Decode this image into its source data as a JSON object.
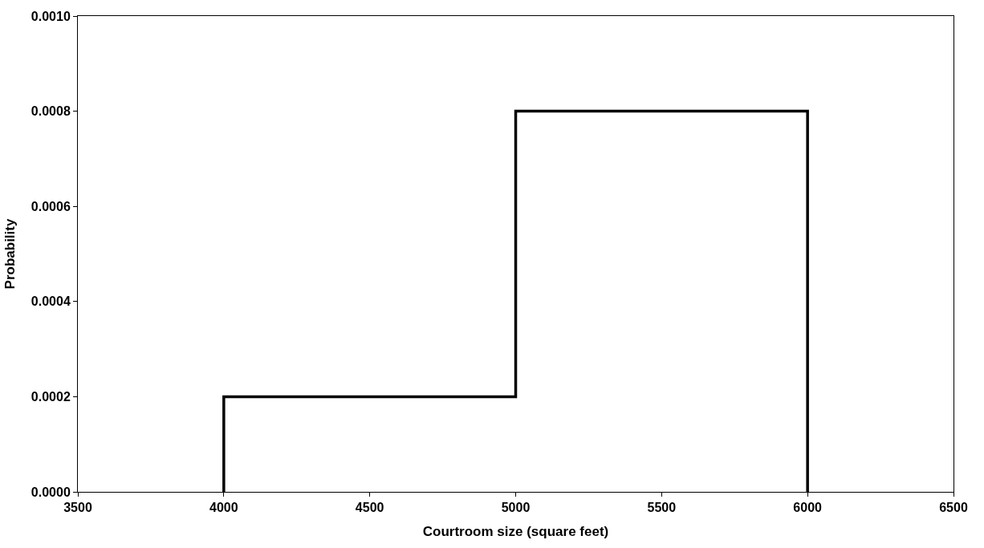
{
  "chart_data": {
    "type": "line",
    "xlabel": "Courtroom size (square feet)",
    "ylabel": "Probability",
    "x": [
      4000,
      4000,
      5000,
      5000,
      6000,
      6000
    ],
    "series": [
      {
        "color": "#000000",
        "values": [
          0,
          0.0002,
          0.0002,
          0.0008,
          0.0008,
          0
        ]
      }
    ],
    "xlim": [
      3500,
      6500
    ],
    "xticks": [
      3500,
      4000,
      4500,
      5000,
      5500,
      6000,
      6500
    ],
    "ylim": [
      0,
      0.001
    ],
    "yticks": [
      {
        "value": 0,
        "label": "0.0000"
      },
      {
        "value": 0.0002,
        "label": "0.0002"
      },
      {
        "value": 0.0004,
        "label": "0.0004"
      },
      {
        "value": 0.0006,
        "label": "0.0006"
      },
      {
        "value": 0.0008,
        "label": "0.0008"
      },
      {
        "value": 0.001,
        "label": "0.0010"
      }
    ],
    "marker": "none",
    "line_style": "solid"
  }
}
